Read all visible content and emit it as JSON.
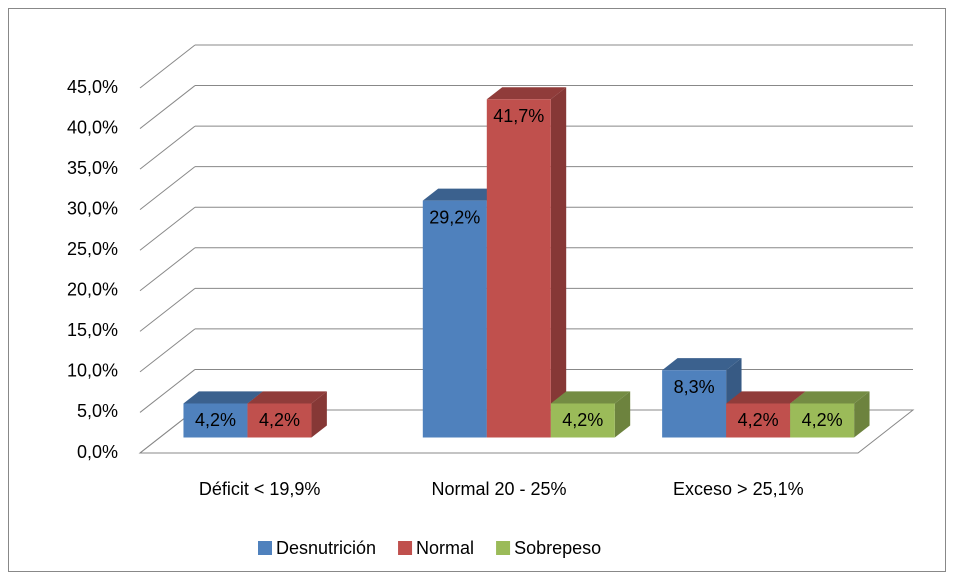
{
  "chart_data": {
    "type": "bar3d",
    "categories": [
      "Déficit < 19,9%",
      "Normal 20 - 25%",
      "Exceso > 25,1%"
    ],
    "series": [
      {
        "name": "Desnutrición",
        "color": "#4f81bd",
        "values": [
          4.2,
          29.2,
          8.3
        ],
        "value_labels": [
          "4,2%",
          "29,2%",
          "8,3%"
        ]
      },
      {
        "name": "Normal",
        "color": "#c0504d",
        "values": [
          4.2,
          41.7,
          4.2
        ],
        "value_labels": [
          "4,2%",
          "41,7%",
          "4,2%"
        ]
      },
      {
        "name": "Sobrepeso",
        "color": "#9bbb59",
        "values": [
          null,
          4.2,
          4.2
        ],
        "value_labels": [
          null,
          "4,2%",
          "4,2%"
        ]
      }
    ],
    "ylim": [
      0,
      45
    ],
    "yticks": [
      {
        "value": 0,
        "label": "0,0%"
      },
      {
        "value": 5,
        "label": "5,0%"
      },
      {
        "value": 10,
        "label": "10,0%"
      },
      {
        "value": 15,
        "label": "15,0%"
      },
      {
        "value": 20,
        "label": "20,0%"
      },
      {
        "value": 25,
        "label": "25,0%"
      },
      {
        "value": 30,
        "label": "30,0%"
      },
      {
        "value": 35,
        "label": "35,0%"
      },
      {
        "value": 40,
        "label": "40,0%"
      },
      {
        "value": 45,
        "label": "45,0%"
      }
    ],
    "grid": true,
    "legend": "bottom"
  }
}
